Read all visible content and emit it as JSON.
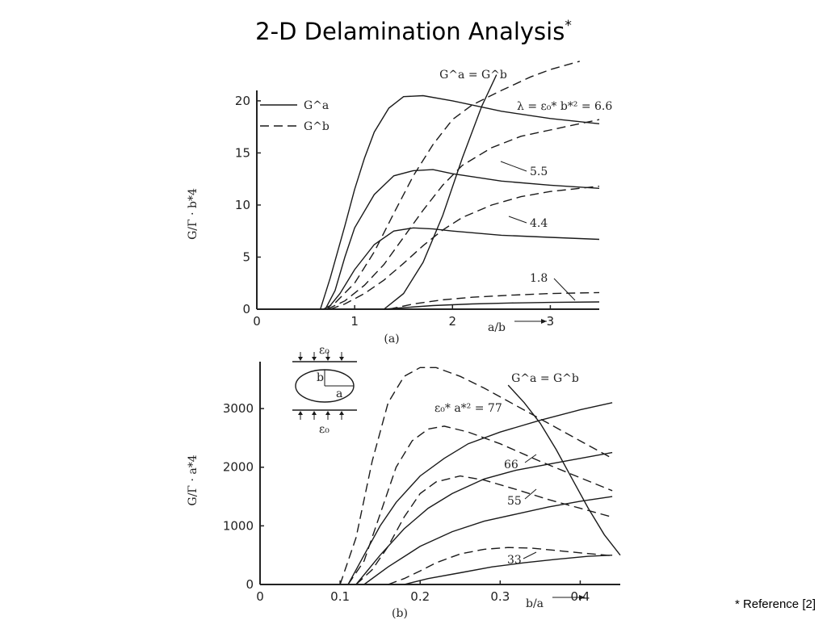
{
  "slide": {
    "title": "2-D Delamination Analysis",
    "title_marker": "*",
    "footnote": "* Reference [2]"
  },
  "chart_data": [
    {
      "type": "line",
      "panel_label": "(a)",
      "xlabel": "a/b",
      "ylabel": "G/Γ · b*4",
      "xlim": [
        0,
        3.5
      ],
      "ylim": [
        0,
        21
      ],
      "x_ticks": [
        "0",
        "1",
        "2",
        "3"
      ],
      "y_ticks": [
        "0",
        "5",
        "10",
        "15",
        "20"
      ],
      "legend": [
        {
          "style": "solid",
          "label": "G^a"
        },
        {
          "style": "dashed",
          "label": "G^b"
        }
      ],
      "legend_placement": "top-left",
      "annotations": {
        "equality_curve": "G^a = G^b",
        "lambda_label": "λ = ε₀* b*² = 6.6",
        "param_labels": [
          "5.5",
          "4.4",
          "1.8"
        ]
      },
      "series": [
        {
          "name": "Ga, λ=6.6",
          "style": "solid",
          "x": [
            0.65,
            0.75,
            0.9,
            1.0,
            1.1,
            1.2,
            1.35,
            1.5,
            1.7,
            2.0,
            2.5,
            3.0,
            3.5
          ],
          "y": [
            0,
            3.0,
            8.0,
            11.5,
            14.5,
            17.0,
            19.3,
            20.4,
            20.5,
            20.0,
            19.0,
            18.3,
            17.8
          ]
        },
        {
          "name": "Gb, λ=6.6",
          "style": "dashed",
          "x": [
            0.68,
            0.8,
            1.0,
            1.2,
            1.4,
            1.6,
            1.8,
            2.0,
            2.2,
            2.5,
            2.8,
            3.0,
            3.3
          ],
          "y": [
            0,
            0.6,
            2.5,
            5.5,
            9.2,
            12.8,
            15.8,
            18.2,
            19.6,
            21.0,
            22.3,
            23.0,
            23.8
          ]
        },
        {
          "name": "Ga, λ=5.5",
          "style": "solid",
          "x": [
            0.7,
            0.8,
            0.9,
            1.0,
            1.2,
            1.4,
            1.6,
            1.8,
            2.0,
            2.5,
            3.0,
            3.5
          ],
          "y": [
            0,
            1.8,
            5.0,
            7.8,
            11.0,
            12.8,
            13.3,
            13.4,
            13.0,
            12.3,
            11.9,
            11.6
          ]
        },
        {
          "name": "Gb, λ=5.5",
          "style": "dashed",
          "x": [
            0.72,
            0.9,
            1.1,
            1.3,
            1.5,
            1.7,
            1.9,
            2.1,
            2.4,
            2.7,
            3.0,
            3.5
          ],
          "y": [
            0,
            0.8,
            2.3,
            4.3,
            6.9,
            9.5,
            11.9,
            13.8,
            15.5,
            16.6,
            17.2,
            18.2
          ]
        },
        {
          "name": "Ga, λ=4.4",
          "style": "solid",
          "x": [
            0.72,
            0.85,
            1.0,
            1.2,
            1.4,
            1.6,
            1.8,
            2.0,
            2.5,
            3.0,
            3.5
          ],
          "y": [
            0,
            1.5,
            3.8,
            6.2,
            7.5,
            7.8,
            7.7,
            7.5,
            7.1,
            6.9,
            6.7
          ]
        },
        {
          "name": "Gb, λ=4.4",
          "style": "dashed",
          "x": [
            0.75,
            0.9,
            1.1,
            1.3,
            1.5,
            1.7,
            1.9,
            2.1,
            2.4,
            2.7,
            3.0,
            3.5
          ],
          "y": [
            0,
            0.5,
            1.5,
            2.8,
            4.4,
            6.1,
            7.6,
            8.8,
            10.0,
            10.8,
            11.3,
            11.8
          ]
        },
        {
          "name": "Ga, λ=1.8",
          "style": "solid",
          "x": [
            1.3,
            1.5,
            1.8,
            2.2,
            2.6,
            3.0,
            3.5
          ],
          "y": [
            0,
            0.15,
            0.35,
            0.5,
            0.6,
            0.65,
            0.7
          ]
        },
        {
          "name": "Gb, λ=1.8",
          "style": "dashed",
          "x": [
            1.35,
            1.6,
            1.9,
            2.2,
            2.6,
            3.0,
            3.5
          ],
          "y": [
            0,
            0.5,
            0.9,
            1.15,
            1.35,
            1.5,
            1.6
          ]
        },
        {
          "name": "Ga = Gb",
          "style": "solid",
          "x": [
            1.3,
            1.5,
            1.7,
            1.9,
            2.1,
            2.3,
            2.45
          ],
          "y": [
            0,
            1.5,
            4.5,
            9.0,
            14.5,
            19.5,
            22.5
          ]
        }
      ]
    },
    {
      "type": "line",
      "panel_label": "(b)",
      "xlabel": "b/a",
      "ylabel": "G/Γ · a*4",
      "xlim": [
        0,
        0.45
      ],
      "ylim": [
        0,
        3800
      ],
      "x_ticks": [
        "0",
        "0.1",
        "0.2",
        "0.3",
        "0.4"
      ],
      "y_ticks": [
        "0",
        "1000",
        "2000",
        "3000"
      ],
      "inset": {
        "load_label_top": "ε₀",
        "load_label_bottom": "ε₀",
        "dim_b": "b",
        "dim_a": "a"
      },
      "annotations": {
        "equality_curve": "G^a = G^b",
        "param_label": "ε₀* a*² = 77",
        "param_labels": [
          "66",
          "55",
          "33"
        ]
      },
      "series": [
        {
          "name": "Gb, 77",
          "style": "dashed",
          "x": [
            0.1,
            0.12,
            0.14,
            0.16,
            0.18,
            0.2,
            0.22,
            0.25,
            0.28,
            0.32,
            0.36,
            0.4,
            0.44
          ],
          "y": [
            0,
            800,
            2100,
            3100,
            3550,
            3700,
            3700,
            3550,
            3350,
            3050,
            2750,
            2450,
            2150
          ]
        },
        {
          "name": "Ga, 77",
          "style": "solid",
          "x": [
            0.11,
            0.13,
            0.15,
            0.17,
            0.2,
            0.23,
            0.26,
            0.3,
            0.35,
            0.4,
            0.44
          ],
          "y": [
            0,
            500,
            1000,
            1400,
            1850,
            2150,
            2400,
            2600,
            2800,
            2980,
            3100
          ]
        },
        {
          "name": "Gb, 66",
          "style": "dashed",
          "x": [
            0.11,
            0.13,
            0.15,
            0.17,
            0.19,
            0.21,
            0.23,
            0.26,
            0.3,
            0.35,
            0.4,
            0.44
          ],
          "y": [
            0,
            400,
            1200,
            2000,
            2450,
            2650,
            2700,
            2600,
            2400,
            2100,
            1820,
            1600
          ]
        },
        {
          "name": "Ga, 66",
          "style": "solid",
          "x": [
            0.12,
            0.15,
            0.18,
            0.21,
            0.24,
            0.28,
            0.32,
            0.36,
            0.4,
            0.44
          ],
          "y": [
            0,
            500,
            950,
            1300,
            1550,
            1800,
            1950,
            2050,
            2150,
            2250
          ]
        },
        {
          "name": "Gb, 55",
          "style": "dashed",
          "x": [
            0.12,
            0.14,
            0.16,
            0.18,
            0.2,
            0.22,
            0.25,
            0.28,
            0.32,
            0.36,
            0.4,
            0.44
          ],
          "y": [
            0,
            250,
            650,
            1150,
            1550,
            1750,
            1850,
            1780,
            1620,
            1450,
            1300,
            1150
          ]
        },
        {
          "name": "Ga, 55",
          "style": "solid",
          "x": [
            0.13,
            0.16,
            0.2,
            0.24,
            0.28,
            0.32,
            0.36,
            0.4,
            0.44
          ],
          "y": [
            0,
            300,
            650,
            900,
            1080,
            1200,
            1320,
            1420,
            1500
          ]
        },
        {
          "name": "Gb, 33",
          "style": "dashed",
          "x": [
            0.16,
            0.18,
            0.2,
            0.22,
            0.25,
            0.28,
            0.31,
            0.34,
            0.37,
            0.4,
            0.44
          ],
          "y": [
            0,
            100,
            230,
            370,
            520,
            600,
            630,
            620,
            580,
            540,
            490
          ]
        },
        {
          "name": "Ga, 33",
          "style": "solid",
          "x": [
            0.18,
            0.21,
            0.25,
            0.29,
            0.33,
            0.37,
            0.41,
            0.44
          ],
          "y": [
            0,
            100,
            200,
            300,
            370,
            430,
            480,
            500
          ]
        },
        {
          "name": "Ga = Gb",
          "style": "solid",
          "x": [
            0.31,
            0.33,
            0.35,
            0.37,
            0.39,
            0.41,
            0.43,
            0.45
          ],
          "y": [
            3400,
            3100,
            2750,
            2300,
            1800,
            1300,
            850,
            500
          ]
        }
      ]
    }
  ]
}
